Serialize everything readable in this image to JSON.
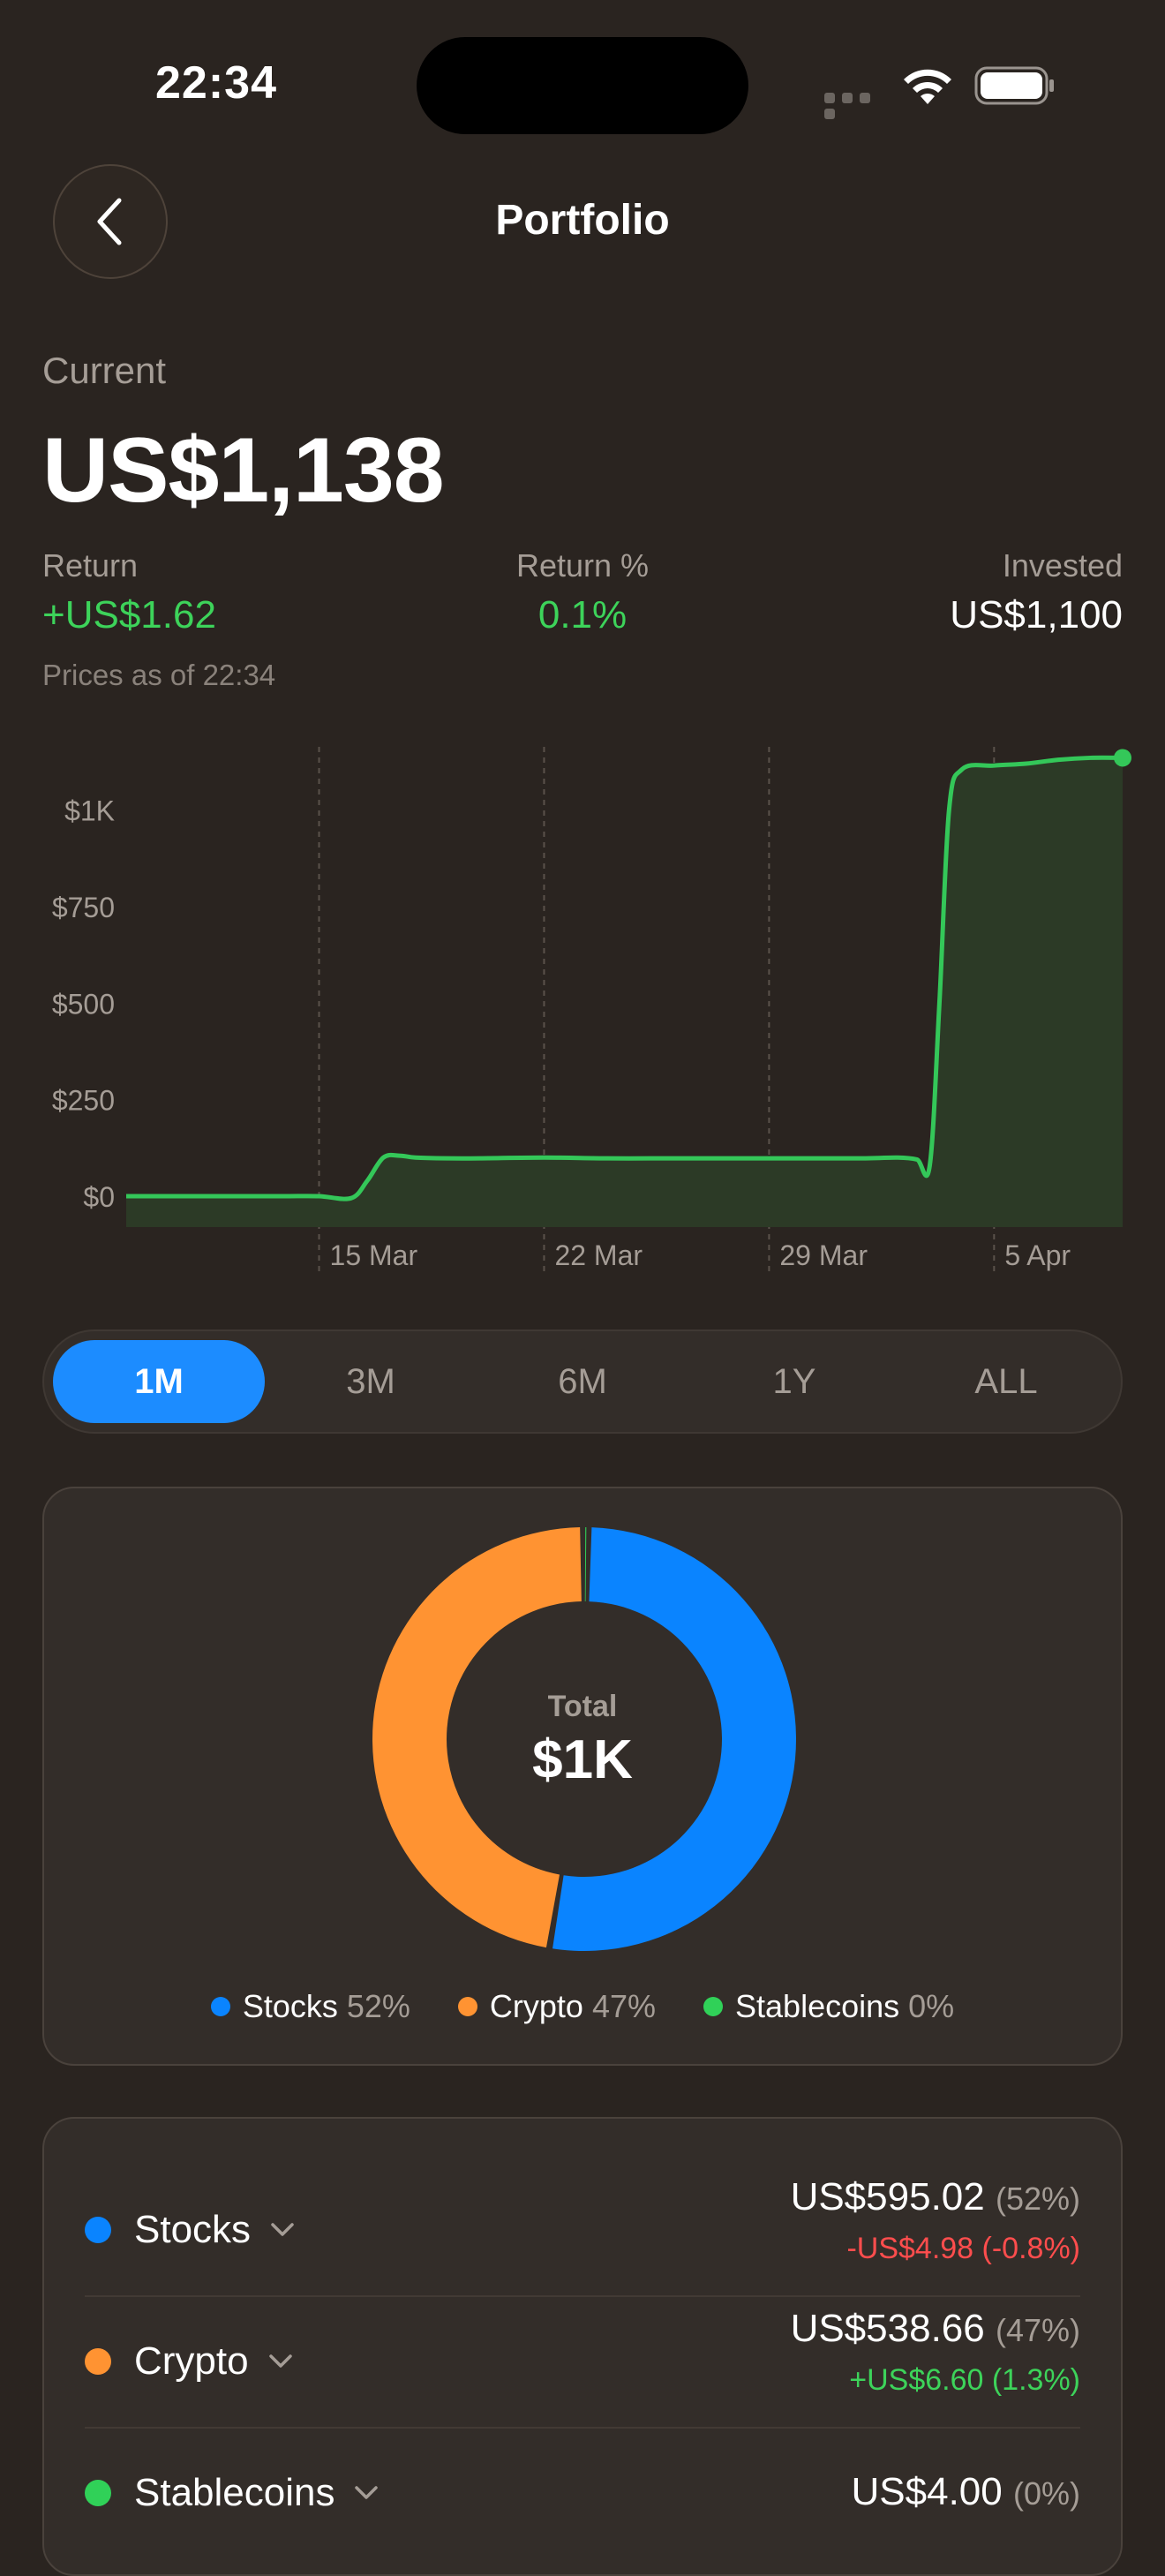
{
  "status_bar": {
    "time": "22:34"
  },
  "nav": {
    "title": "Portfolio"
  },
  "summary": {
    "current_label": "Current",
    "current_value": "US$1,138",
    "return_label": "Return",
    "return_value": "+US$1.62",
    "return_pct_label": "Return %",
    "return_pct_value": "0.1%",
    "invested_label": "Invested",
    "invested_value": "US$1,100",
    "prices_asof": "Prices as of 22:34"
  },
  "chart_data": {
    "type": "area",
    "y_tick_labels": [
      "$0",
      "$250",
      "$500",
      "$750",
      "$1K"
    ],
    "y_ticks": [
      0,
      250,
      500,
      750,
      1000
    ],
    "ylim": [
      -80,
      1200
    ],
    "x_tick_labels": [
      "15 Mar",
      "22 Mar",
      "29 Mar",
      "5 Apr"
    ],
    "x_ticks": [
      9,
      16,
      23,
      30
    ],
    "xlim": [
      3,
      34
    ],
    "x": [
      3,
      4,
      5,
      6,
      7,
      8,
      9,
      10,
      10.5,
      11,
      11.5,
      12,
      13,
      14,
      16,
      18,
      20,
      22,
      24,
      26,
      27,
      27.6,
      28,
      28.3,
      28.6,
      29,
      30,
      31,
      32,
      33,
      34
    ],
    "series": [
      {
        "values": [
          0,
          0,
          0,
          0,
          0,
          0,
          0,
          -5,
          40,
          100,
          105,
          100,
          98,
          98,
          100,
          98,
          98,
          98,
          98,
          98,
          100,
          95,
          80,
          500,
          1000,
          1105,
          1115,
          1120,
          1130,
          1135,
          1135
        ]
      }
    ],
    "line_color": "#34c759",
    "fill_color": "#2c3a26",
    "grid": "vertical dashed"
  },
  "ranges": [
    "1M",
    "3M",
    "6M",
    "1Y",
    "ALL"
  ],
  "allocation": {
    "total_label": "Total",
    "total_value": "$1K",
    "segments": [
      {
        "name": "Stocks",
        "pct_label": "52%",
        "value": 52,
        "color": "#0a84ff"
      },
      {
        "name": "Crypto",
        "pct_label": "47%",
        "value": 47,
        "color": "#ff9332"
      },
      {
        "name": "Stablecoins",
        "pct_label": "0%",
        "value": 0.4,
        "color": "#30d158"
      }
    ]
  },
  "holdings": [
    {
      "name": "Stocks",
      "amount": "US$595.02",
      "pct": "(52%)",
      "delta": "-US$4.98 (-0.8%)",
      "color": "#0a84ff"
    },
    {
      "name": "Crypto",
      "amount": "US$538.66",
      "pct": "(47%)",
      "delta": "+US$6.60 (1.3%)",
      "color": "#ff9332"
    },
    {
      "name": "Stablecoins",
      "amount": "US$4.00",
      "pct": "(0%)",
      "delta": "",
      "color": "#30d158"
    }
  ],
  "icons": [
    "back-arrow-icon",
    "wifi-icon",
    "battery-icon",
    "cellular-signal-icon",
    "chevron-down-icon"
  ]
}
